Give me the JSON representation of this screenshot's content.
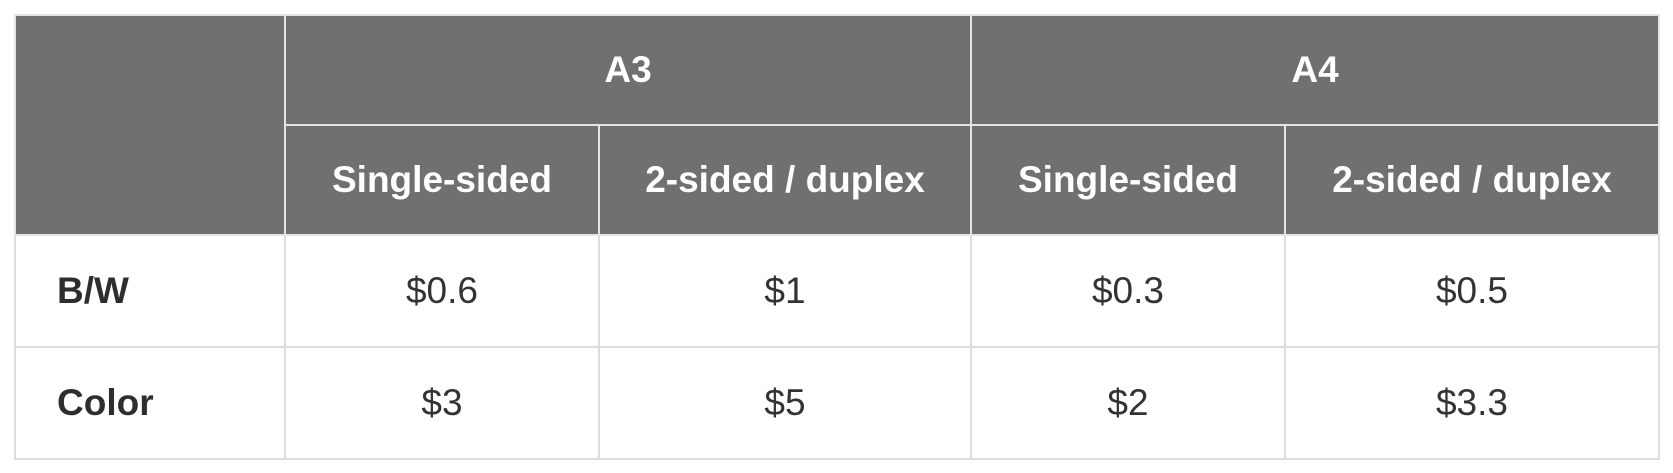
{
  "table": {
    "groups": [
      "A3",
      "A4"
    ],
    "subheaders": [
      "Single-sided",
      "2-sided / duplex",
      "Single-sided",
      "2-sided / duplex"
    ],
    "rows": [
      {
        "label": "B/W",
        "values": [
          "$0.6",
          "$1",
          "$0.3",
          "$0.5"
        ]
      },
      {
        "label": "Color",
        "values": [
          "$3",
          "$5",
          "$2",
          "$3.3"
        ]
      }
    ]
  },
  "colors": {
    "header_bg": "#707070",
    "header_text": "#ffffff",
    "border": "#dcdcdc",
    "body_text": "#333333"
  }
}
